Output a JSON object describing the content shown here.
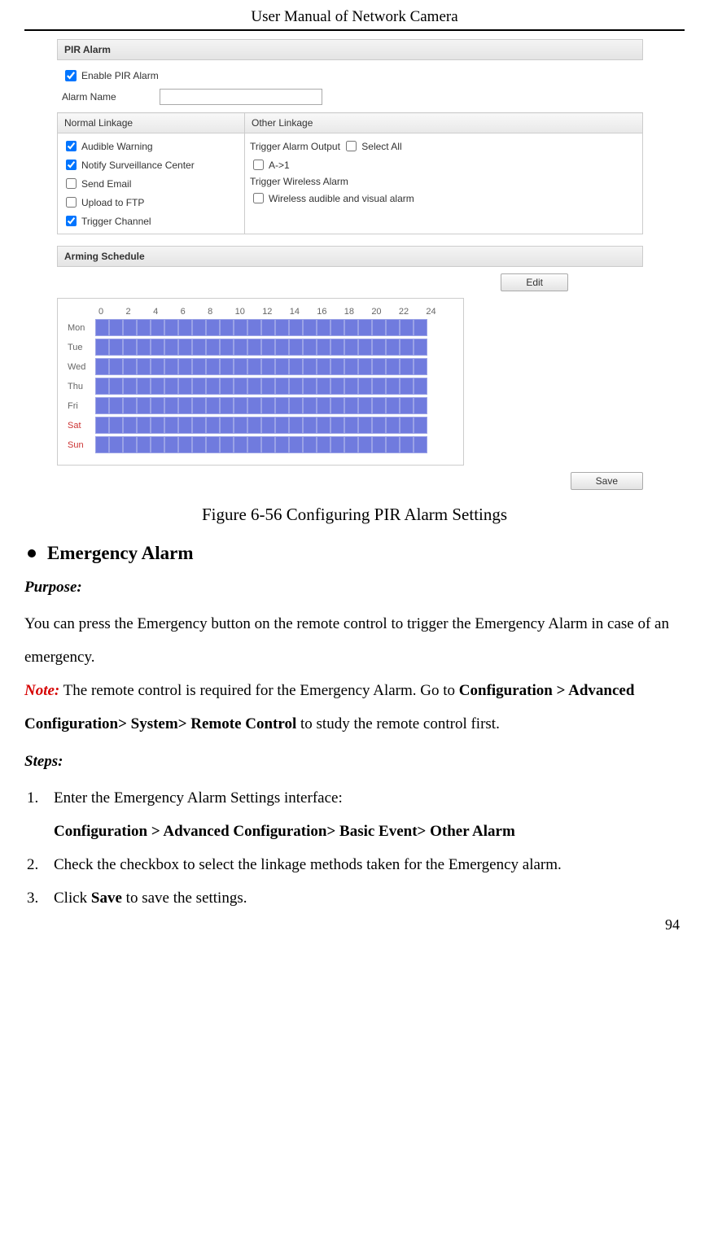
{
  "header": {
    "title": "User Manual of Network Camera"
  },
  "screenshot": {
    "pir_panel": {
      "title": "PIR Alarm",
      "enable_label": "Enable PIR Alarm",
      "enable_checked": true,
      "alarm_name_label": "Alarm Name",
      "alarm_name_value": ""
    },
    "linkage": {
      "col1_header": "Normal Linkage",
      "col2_header": "Other Linkage",
      "normal": [
        {
          "label": "Audible Warning",
          "checked": true
        },
        {
          "label": "Notify Surveillance Center",
          "checked": true
        },
        {
          "label": "Send Email",
          "checked": false
        },
        {
          "label": "Upload to FTP",
          "checked": false
        },
        {
          "label": "Trigger Channel",
          "checked": true
        }
      ],
      "other": {
        "trigger_output_label": "Trigger Alarm Output",
        "select_all_label": "Select All",
        "select_all_checked": false,
        "a1_label": "A->1",
        "a1_checked": false,
        "wireless_header": "Trigger Wireless Alarm",
        "wireless_item": "Wireless audible and visual alarm",
        "wireless_checked": false
      }
    },
    "arming": {
      "title": "Arming Schedule",
      "edit_label": "Edit",
      "hours": [
        "0",
        "2",
        "4",
        "6",
        "8",
        "10",
        "12",
        "14",
        "16",
        "18",
        "20",
        "22",
        "24"
      ],
      "days": [
        {
          "label": "Mon",
          "weekend": false
        },
        {
          "label": "Tue",
          "weekend": false
        },
        {
          "label": "Wed",
          "weekend": false
        },
        {
          "label": "Thu",
          "weekend": false
        },
        {
          "label": "Fri",
          "weekend": false
        },
        {
          "label": "Sat",
          "weekend": true
        },
        {
          "label": "Sun",
          "weekend": true
        }
      ],
      "cell_color": "#707bde",
      "cell_border": "#9aa2e6"
    },
    "save_label": "Save"
  },
  "figure_caption": "Figure 6-56 Configuring PIR Alarm Settings",
  "section": {
    "heading": "Emergency Alarm",
    "purpose_label": "Purpose:",
    "purpose_text": "You can press the Emergency button on the remote control to trigger the Emergency Alarm in case of an emergency.",
    "note_label": "Note:",
    "note_text_1": " The remote control is required for the Emergency Alarm. Go to ",
    "note_path": "Configuration > Advanced Configuration> System> Remote Control",
    "note_text_2": " to study the remote control first.",
    "steps_label": "Steps:",
    "steps": {
      "s1a": "Enter the Emergency Alarm Settings interface:",
      "s1b": "Configuration > Advanced Configuration> Basic Event> Other Alarm",
      "s2": "Check the checkbox to select the linkage methods taken for the Emergency alarm.",
      "s3a": "Click ",
      "s3b": "Save",
      "s3c": " to save the settings."
    }
  },
  "page_number": "94"
}
